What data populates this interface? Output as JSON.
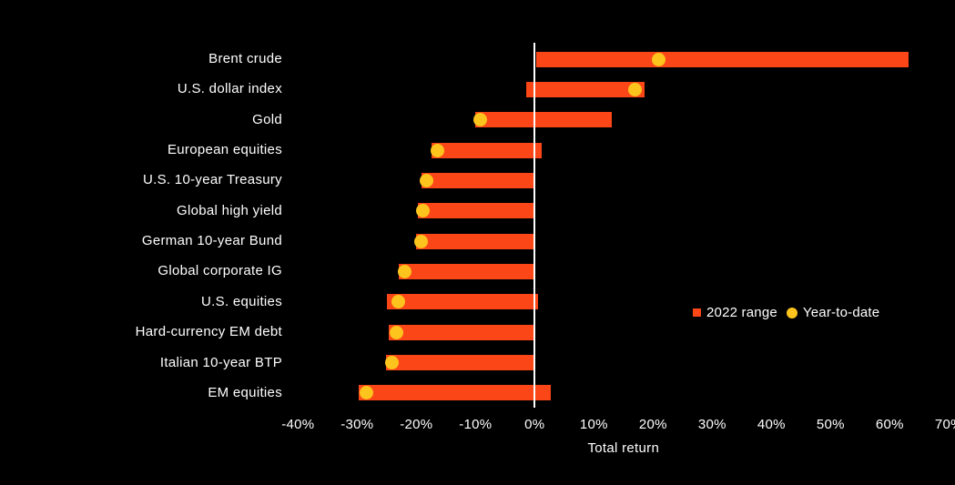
{
  "chart_data": {
    "type": "bar",
    "variant": "horizontal_range_bars_with_dot_markers",
    "title": "",
    "xlabel": "Total return",
    "ylabel": "",
    "background_color": "#000000",
    "text_color": "#ffffff",
    "zero_line_color": "#ffffff",
    "grid": false,
    "legend_position": "middle-right",
    "xlim": [
      -45,
      75
    ],
    "x_tick_values": [
      -40,
      -30,
      -20,
      -10,
      0,
      10,
      20,
      30,
      40,
      50,
      60,
      70
    ],
    "x_tick_labels": [
      "-40%",
      "-30%",
      "-20%",
      "-10%",
      "0%",
      "10%",
      "20%",
      "30%",
      "40%",
      "50%",
      "60%",
      "70%"
    ],
    "categories": [
      "Brent crude",
      "U.S. dollar index",
      "Gold",
      "European equities",
      "U.S. 10-year Treasury",
      "Global high yield",
      "German 10-year Bund",
      "Global corporate IG",
      "U.S. equities",
      "Hard-currency EM debt",
      "Italian 10-year BTP",
      "EM equities"
    ],
    "series": [
      {
        "name": "2022 range",
        "type": "range",
        "marker": "square",
        "color": "#fb4617",
        "low": [
          0.3,
          -1.4,
          -10.1,
          -17.5,
          -19.1,
          -19.8,
          -20.1,
          -22.9,
          -25.0,
          -24.6,
          -25.2,
          -29.8
        ],
        "high": [
          63.2,
          18.6,
          13.0,
          1.2,
          0.0,
          0.0,
          0.0,
          0.0,
          0.6,
          0.0,
          0.0,
          2.7
        ]
      },
      {
        "name": "Year-to-date",
        "type": "dot",
        "marker": "circle",
        "color": "#fcc41d",
        "values": [
          21.0,
          16.9,
          -9.2,
          -16.4,
          -18.3,
          -18.9,
          -19.2,
          -22.0,
          -23.0,
          -23.3,
          -24.2,
          -28.5
        ]
      }
    ]
  }
}
